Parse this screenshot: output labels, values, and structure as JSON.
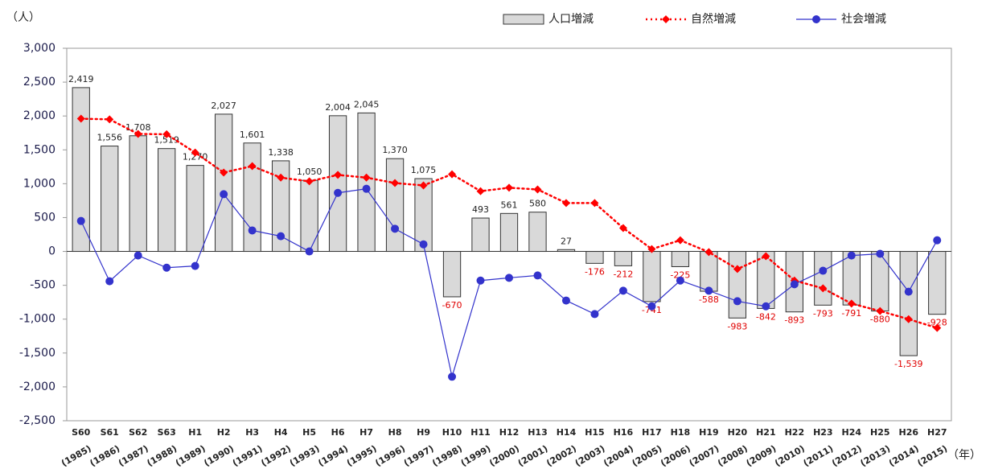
{
  "chart_data": {
    "type": "bar",
    "y_axis_label": "（人）",
    "x_axis_label": "（年）",
    "categories": [
      "S60",
      "S61",
      "S62",
      "S63",
      "H1",
      "H2",
      "H3",
      "H4",
      "H5",
      "H6",
      "H7",
      "H8",
      "H9",
      "H10",
      "H11",
      "H12",
      "H13",
      "H14",
      "H15",
      "H16",
      "H17",
      "H18",
      "H19",
      "H20",
      "H21",
      "H22",
      "H23",
      "H24",
      "H25",
      "H26",
      "H27"
    ],
    "years": [
      "(1985)",
      "(1986)",
      "(1987)",
      "(1988)",
      "(1989)",
      "(1990)",
      "(1991)",
      "(1992)",
      "(1993)",
      "(1994)",
      "(1995)",
      "(1996)",
      "(1997)",
      "(1998)",
      "(1999)",
      "(2000)",
      "(2001)",
      "(2002)",
      "(2003)",
      "(2004)",
      "(2005)",
      "(2006)",
      "(2007)",
      "(2008)",
      "(2009)",
      "(2010)",
      "(2011)",
      "(2012)",
      "(2013)",
      "(2014)",
      "(2015)"
    ],
    "ylim": [
      -2500,
      3000
    ],
    "yticks": [
      {
        "value": 3000,
        "label": "3,000"
      },
      {
        "value": 2500,
        "label": "2,500"
      },
      {
        "value": 2000,
        "label": "2,000"
      },
      {
        "value": 1500,
        "label": "1,500"
      },
      {
        "value": 1000,
        "label": "1,000"
      },
      500,
      0,
      -500,
      {
        "value": -1000,
        "label": "-1,000"
      },
      {
        "value": -1500,
        "label": "-1,500"
      },
      {
        "value": -2000,
        "label": "-2,000"
      },
      {
        "value": -2500,
        "label": "-2,500"
      }
    ],
    "grid": false,
    "series": [
      {
        "name": "人口増減",
        "type": "bar",
        "color": "#d9d9d9",
        "values": [
          2419,
          1556,
          1708,
          1519,
          1270,
          2027,
          1601,
          1338,
          1050,
          2004,
          2045,
          1370,
          1075,
          -670,
          493,
          561,
          580,
          27,
          -176,
          -212,
          -741,
          -225,
          -588,
          -983,
          -842,
          -893,
          -793,
          -791,
          -880,
          -1539,
          -928
        ],
        "value_labels": [
          "2,419",
          "1,556",
          "1,708",
          "1,519",
          "1,270",
          "2,027",
          "1,601",
          "1,338",
          "1,050",
          "2,004",
          "2,045",
          "1,370",
          "1,075",
          "-670",
          "493",
          "561",
          "580",
          "27",
          "-176",
          "-212",
          "-741",
          "-225",
          "-588",
          "-983",
          "-842",
          "-893",
          "-793",
          "-791",
          "-880",
          "-1,539",
          "-928"
        ]
      },
      {
        "name": "自然増減",
        "type": "line",
        "color": "#ff0000",
        "values": [
          1960,
          1950,
          1735,
          1730,
          1460,
          1165,
          1260,
          1090,
          1035,
          1130,
          1090,
          1010,
          975,
          1140,
          890,
          940,
          915,
          715,
          715,
          345,
          35,
          165,
          -10,
          -260,
          -70,
          -430,
          -545,
          -770,
          -880,
          -1000,
          -1130
        ]
      },
      {
        "name": "社会増減",
        "type": "line",
        "color": "#3333cc",
        "values": [
          450,
          -440,
          -60,
          -240,
          -215,
          845,
          310,
          225,
          0,
          865,
          925,
          335,
          105,
          -1850,
          -430,
          -390,
          -355,
          -725,
          -925,
          -580,
          -810,
          -430,
          -580,
          -735,
          -810,
          -485,
          -285,
          -60,
          -35,
          -595,
          165
        ]
      }
    ]
  }
}
